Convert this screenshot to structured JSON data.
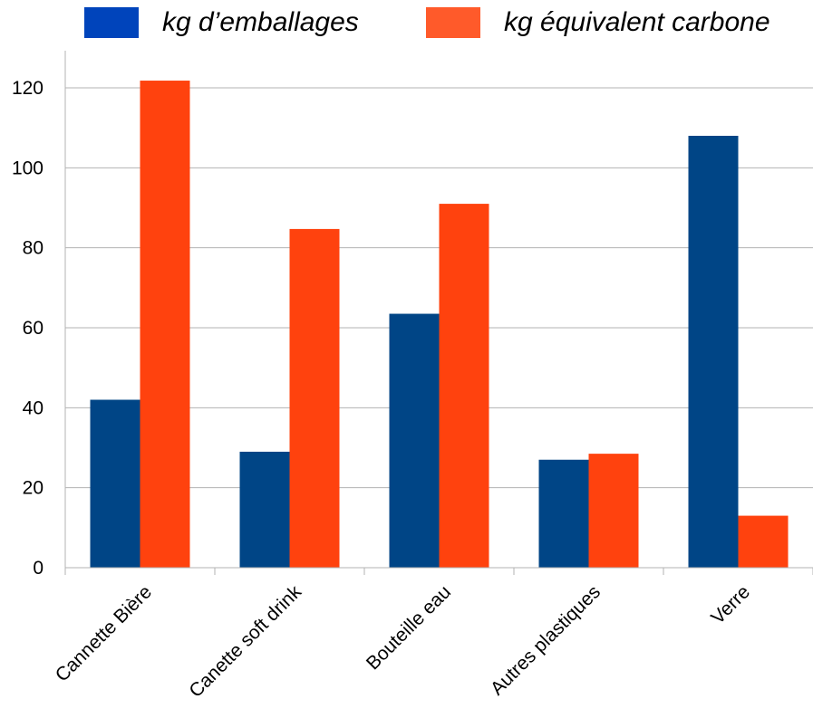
{
  "colors": {
    "series_0": "#004586",
    "series_1": "#ff420e",
    "legend_0": "#0044bb",
    "legend_1": "#ff5a2a",
    "grid": "#b3b3b3",
    "axis": "#b3b3b3",
    "text": "#000000"
  },
  "chart_data": {
    "type": "bar",
    "title": "",
    "xlabel": "",
    "ylabel": "",
    "categories": [
      "Cannette Bière",
      "Canette soft drink",
      "Bouteille eau",
      "Autres plastiques",
      "Verre"
    ],
    "series": [
      {
        "name": "kg d’emballages",
        "values": [
          42,
          29,
          63.5,
          27,
          108
        ]
      },
      {
        "name": "kg équivalent carbone",
        "values": [
          121.8,
          84.7,
          91,
          28.5,
          13
        ]
      }
    ],
    "ylim": [
      0,
      130
    ],
    "yticks": [
      "0",
      "20",
      "40",
      "60",
      "80",
      "100",
      "120"
    ],
    "ytick_values": [
      0,
      20,
      40,
      60,
      80,
      100,
      120
    ],
    "grid": true,
    "legend_position": "top"
  }
}
